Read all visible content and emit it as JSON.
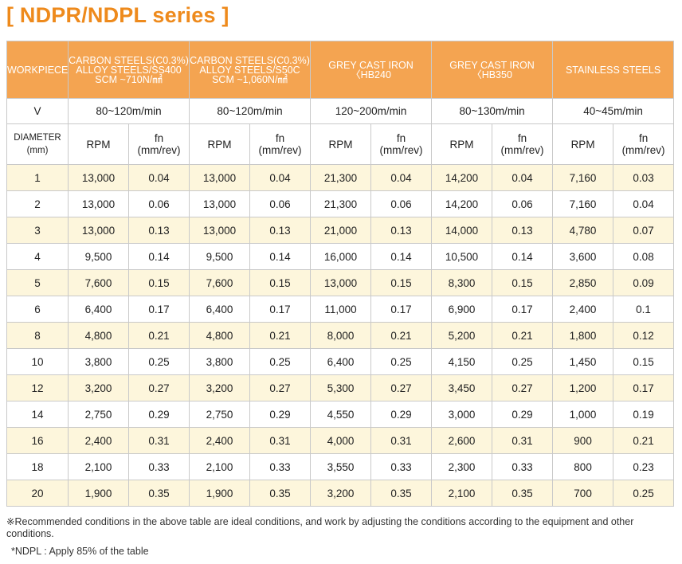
{
  "title": "[ NDPR/NDPL series ]",
  "header": {
    "workpiece": "WORKPIECE",
    "materials": [
      [
        "CARBON STEELS(C0.3%)",
        "ALLOY STEELS/SS400",
        "SCM ~710N/㎟"
      ],
      [
        "CARBON STEELS(C0.3%)",
        "ALLOY STEELS/S50C",
        "SCM ~1,060N/㎟"
      ],
      [
        "GREY CAST IRON",
        "〈HB240"
      ],
      [
        "GREY CAST IRON",
        "〈HB350"
      ],
      [
        "STAINLESS STEELS"
      ]
    ]
  },
  "speed_row": {
    "label": "V",
    "values": [
      "80~120m/min",
      "80~120m/min",
      "120~200m/min",
      "80~130m/min",
      "40~45m/min"
    ]
  },
  "subheader": {
    "diameter": "DIAMETER",
    "diameter_unit": "(mm)",
    "rpm": "RPM",
    "fn": "fn",
    "fn_unit": "(mm/rev)"
  },
  "rows": [
    [
      "1",
      "13,000",
      "0.04",
      "13,000",
      "0.04",
      "21,300",
      "0.04",
      "14,200",
      "0.04",
      "7,160",
      "0.03"
    ],
    [
      "2",
      "13,000",
      "0.06",
      "13,000",
      "0.06",
      "21,300",
      "0.06",
      "14,200",
      "0.06",
      "7,160",
      "0.04"
    ],
    [
      "3",
      "13,000",
      "0.13",
      "13,000",
      "0.13",
      "21,000",
      "0.13",
      "14,000",
      "0.13",
      "4,780",
      "0.07"
    ],
    [
      "4",
      "9,500",
      "0.14",
      "9,500",
      "0.14",
      "16,000",
      "0.14",
      "10,500",
      "0.14",
      "3,600",
      "0.08"
    ],
    [
      "5",
      "7,600",
      "0.15",
      "7,600",
      "0.15",
      "13,000",
      "0.15",
      "8,300",
      "0.15",
      "2,850",
      "0.09"
    ],
    [
      "6",
      "6,400",
      "0.17",
      "6,400",
      "0.17",
      "11,000",
      "0.17",
      "6,900",
      "0.17",
      "2,400",
      "0.1"
    ],
    [
      "8",
      "4,800",
      "0.21",
      "4,800",
      "0.21",
      "8,000",
      "0.21",
      "5,200",
      "0.21",
      "1,800",
      "0.12"
    ],
    [
      "10",
      "3,800",
      "0.25",
      "3,800",
      "0.25",
      "6,400",
      "0.25",
      "4,150",
      "0.25",
      "1,450",
      "0.15"
    ],
    [
      "12",
      "3,200",
      "0.27",
      "3,200",
      "0.27",
      "5,300",
      "0.27",
      "3,450",
      "0.27",
      "1,200",
      "0.17"
    ],
    [
      "14",
      "2,750",
      "0.29",
      "2,750",
      "0.29",
      "4,550",
      "0.29",
      "3,000",
      "0.29",
      "1,000",
      "0.19"
    ],
    [
      "16",
      "2,400",
      "0.31",
      "2,400",
      "0.31",
      "4,000",
      "0.31",
      "2,600",
      "0.31",
      "900",
      "0.21"
    ],
    [
      "18",
      "2,100",
      "0.33",
      "2,100",
      "0.33",
      "3,550",
      "0.33",
      "2,300",
      "0.33",
      "800",
      "0.23"
    ],
    [
      "20",
      "1,900",
      "0.35",
      "1,900",
      "0.35",
      "3,200",
      "0.35",
      "2,100",
      "0.35",
      "700",
      "0.25"
    ]
  ],
  "notes": {
    "recommended": "※Recommended conditions in the above table are ideal conditions, and work by adjusting the conditions according to the equipment and other conditions.",
    "ndpl": "*NDPL : Apply 85% of the table"
  },
  "colors": {
    "title": "#ee8a1c",
    "header_bg": "#f4a451",
    "row_highlight": "#fdf6dc"
  }
}
